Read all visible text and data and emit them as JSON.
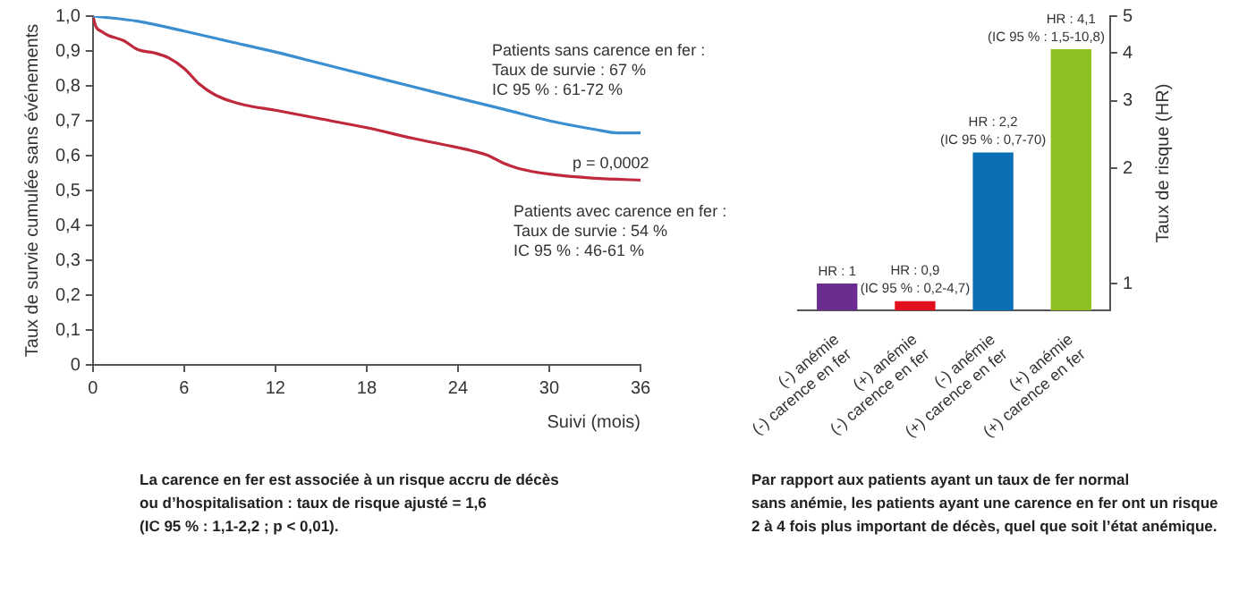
{
  "chart_data": [
    {
      "type": "line",
      "xlabel": "Suivi (mois)",
      "ylabel": "Taux de survie cumulée sans événements",
      "xlim": [
        0,
        36
      ],
      "xticks": [
        0,
        6,
        12,
        18,
        24,
        30,
        36
      ],
      "ylim": [
        0,
        1
      ],
      "yticks": [
        0,
        {
          "value": 0.1,
          "label": "0,1"
        },
        {
          "value": 0.2,
          "label": "0,2"
        },
        {
          "value": 0.3,
          "label": "0,3"
        },
        {
          "value": 0.4,
          "label": "0,4"
        },
        {
          "value": 0.5,
          "label": "0,5"
        },
        {
          "value": 0.6,
          "label": "0,6"
        },
        {
          "value": 0.7,
          "label": "0,7"
        },
        {
          "value": 0.8,
          "label": "0,8"
        },
        {
          "value": 0.9,
          "label": "0,9"
        },
        {
          "value": 1,
          "label": "1,0"
        }
      ],
      "grid": false,
      "legend": false,
      "marker": "none",
      "line_style": "solid",
      "series": [
        {
          "color": "#3b8fd0",
          "x": [
            0,
            3,
            6,
            9,
            12,
            15,
            18,
            21,
            24,
            27,
            30,
            33,
            34.5,
            36
          ],
          "values": [
            1,
            0.985,
            0.957,
            0.927,
            0.897,
            0.864,
            0.831,
            0.798,
            0.765,
            0.733,
            0.7,
            0.675,
            0.665,
            0.665
          ]
        },
        {
          "color": "#c0283c",
          "x": [
            0,
            0.2,
            0.6,
            1,
            2,
            3,
            4,
            5,
            6,
            7,
            8,
            9,
            10,
            12,
            15,
            18,
            21,
            24,
            25,
            26,
            27,
            28,
            30,
            33,
            36
          ],
          "values": [
            1,
            0.97,
            0.955,
            0.945,
            0.93,
            0.903,
            0.895,
            0.88,
            0.85,
            0.805,
            0.775,
            0.757,
            0.745,
            0.73,
            0.705,
            0.68,
            0.65,
            0.623,
            0.613,
            0.6,
            0.578,
            0.563,
            0.547,
            0.535,
            0.53
          ]
        }
      ],
      "annotations": [
        "Patients sans carence en fer :\nTaux de survie : 67 %\nIC 95 % : 61-72 %",
        "p = 0,0002",
        "Patients avec carence en fer :\nTaux de survie : 54 %\nIC 95 % : 46-61 %",
        "La carence en fer est associée à un risque accru de décès\nou d’hospitalisation : taux de risque ajusté = 1,6\n(IC 95 % : 1,1-2,2 ; p < 0,01)."
      ]
    },
    {
      "type": "bar",
      "ylabel": "Taux de risque (HR)",
      "log": true,
      "categories": [
        "(-) anémie\n(-) carence en fer",
        "(+) anémie\n(-) carence en fer",
        "(-) anémie\n(+) carence en fer",
        "(+) anémie\n(+) carence en fer"
      ],
      "values": [
        1,
        0.9,
        2.2,
        4.1
      ],
      "colors": [
        "#6a2c8e",
        "#e2101f",
        "#0b6fb6",
        "#8dc021"
      ],
      "ylim": [
        0.85,
        5
      ],
      "yticks": [
        1,
        2,
        3,
        4,
        5
      ],
      "grid": false,
      "legend": false,
      "value_labels": [
        "HR : 1",
        "HR : 0,9",
        "HR : 2,2",
        "HR : 4,1"
      ],
      "annotations": [
        {
          "text": "(IC 95 % : 0,2-4,7)",
          "x": "(+) anémie\n(-) carence en fer",
          "y": 0.9
        },
        {
          "text": "(IC 95 % : 0,7-70)",
          "x": "(-) anémie\n(+) carence en fer",
          "y": 2.2
        },
        {
          "text": "(IC 95 % : 1,5-10,8)",
          "x": "(+) anémie\n(+) carence en fer",
          "y": 4.1
        },
        "Par rapport aux patients ayant un taux de fer normal\nsans anémie, les patients ayant une carence en fer ont un risque\n2 à 4 fois plus important de décès, quel que soit l’état anémique."
      ]
    }
  ]
}
